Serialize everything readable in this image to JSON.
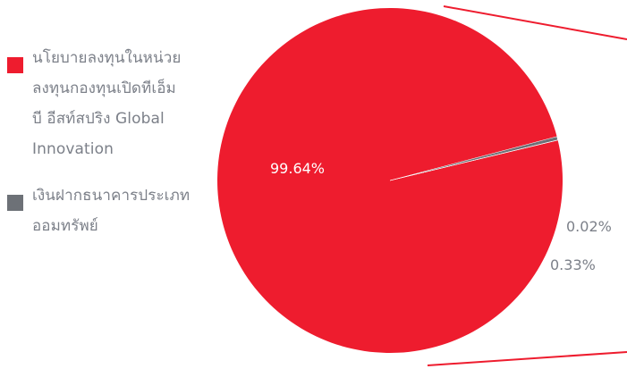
{
  "chart_data": {
    "type": "pie",
    "slices": [
      {
        "label": "นโยบายลงทุนในหน่วยลงทุนกองทุนเปิดทีเอ็มบี อีสท์สปริง Global Innovation",
        "value": 99.64,
        "value_label": "99.64%",
        "color": "#ee1c2e"
      },
      {
        "label": "เงินฝากธนาคารประเภทออมทรัพย์",
        "value": 0.33,
        "value_label": "0.33%",
        "color": "#6d7177"
      },
      {
        "label": "",
        "value": 0.02,
        "value_label": "0.02%",
        "color": "#c9c9c9"
      }
    ],
    "legend_position": "left"
  },
  "legend": {
    "items": [
      {
        "lines": [
          "นโยบายลงทุนในหน่วย",
          "ลงทุนกองทุนเปิดทีเอ็ม",
          "บี อีสท์สปริง Global",
          "Innovation"
        ],
        "color": "#ee1c2e"
      },
      {
        "lines": [
          "เงินฝากธนาคารประเภท",
          "ออมทรัพย์"
        ],
        "color": "#6d7177"
      }
    ]
  },
  "colors": {
    "text": "#7c8089",
    "inside_label": "#ffffff",
    "leader": "#ee1c2e"
  }
}
